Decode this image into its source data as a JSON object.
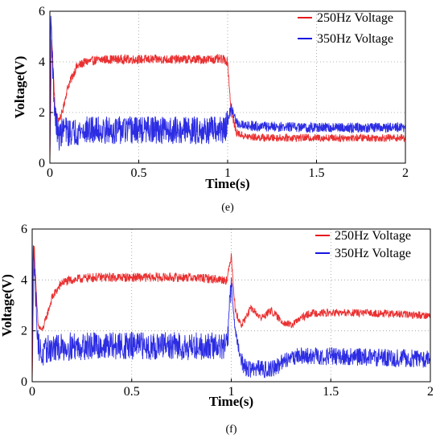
{
  "chart_data": [
    {
      "type": "line",
      "caption": "(e)",
      "xlabel": "Time(s)",
      "ylabel": "Voltage(V)",
      "xlim": [
        0,
        2
      ],
      "ylim": [
        0,
        6
      ],
      "xticks": [
        "0",
        "0.5",
        "1",
        "1.5",
        "2"
      ],
      "yticks": [
        "0",
        "2",
        "4",
        "6"
      ],
      "grid": true,
      "legend_position": "top-right",
      "series": [
        {
          "name": "250Hz Voltage",
          "color": "#e8191b",
          "x": [
            0,
            0.01,
            0.02,
            0.03,
            0.05,
            0.07,
            0.1,
            0.15,
            0.2,
            0.3,
            0.5,
            0.8,
            0.98,
            1.0,
            1.02,
            1.05,
            1.1,
            1.2,
            1.5,
            2.0
          ],
          "y": [
            0,
            5.0,
            3.5,
            2.0,
            1.7,
            2.0,
            3.0,
            3.8,
            4.0,
            4.1,
            4.1,
            4.1,
            4.1,
            4.0,
            2.0,
            1.2,
            1.05,
            1.0,
            1.0,
            1.0
          ]
        },
        {
          "name": "350Hz Voltage",
          "color": "#1515e0",
          "x": [
            0,
            0.005,
            0.01,
            0.02,
            0.03,
            0.05,
            0.08,
            0.1,
            0.2,
            0.5,
            0.8,
            0.98,
            1.0,
            1.02,
            1.05,
            1.1,
            1.2,
            1.5,
            2.0
          ],
          "y": [
            0,
            6.0,
            5.0,
            3.0,
            1.8,
            1.0,
            1.4,
            1.2,
            1.3,
            1.3,
            1.3,
            1.3,
            1.6,
            2.2,
            1.6,
            1.5,
            1.45,
            1.4,
            1.4
          ]
        }
      ]
    },
    {
      "type": "line",
      "caption": "(f)",
      "xlabel": "Time(s)",
      "ylabel": "Voltage(V)",
      "xlim": [
        0,
        2
      ],
      "ylim": [
        0,
        6
      ],
      "xticks": [
        "0",
        "0.5",
        "1",
        "1.5",
        "2"
      ],
      "yticks": [
        "0",
        "2",
        "4",
        "6"
      ],
      "grid": true,
      "legend_position": "top-right",
      "series": [
        {
          "name": "250Hz Voltage",
          "color": "#e8191b",
          "x": [
            0,
            0.01,
            0.02,
            0.03,
            0.05,
            0.07,
            0.1,
            0.15,
            0.2,
            0.3,
            0.5,
            0.8,
            0.98,
            1.0,
            1.02,
            1.05,
            1.1,
            1.15,
            1.2,
            1.25,
            1.3,
            1.35,
            1.4,
            1.5,
            1.7,
            2.0
          ],
          "y": [
            0,
            5.5,
            3.5,
            2.2,
            2.0,
            2.5,
            3.3,
            3.9,
            4.0,
            4.1,
            4.1,
            4.1,
            4.0,
            5.0,
            2.8,
            2.2,
            2.9,
            2.5,
            2.8,
            2.4,
            2.2,
            2.5,
            2.7,
            2.7,
            2.7,
            2.6
          ]
        },
        {
          "name": "350Hz Voltage",
          "color": "#1515e0",
          "x": [
            0,
            0.005,
            0.01,
            0.02,
            0.03,
            0.05,
            0.08,
            0.1,
            0.2,
            0.5,
            0.8,
            0.98,
            1.0,
            1.02,
            1.05,
            1.08,
            1.1,
            1.2,
            1.25,
            1.28,
            1.3,
            1.5,
            2.0
          ],
          "y": [
            0,
            6.0,
            4.5,
            3.0,
            1.5,
            1.0,
            1.3,
            1.3,
            1.4,
            1.4,
            1.4,
            1.4,
            4.0,
            2.0,
            0.8,
            0.5,
            0.5,
            0.5,
            0.7,
            0.9,
            1.0,
            1.0,
            0.9
          ]
        }
      ]
    }
  ]
}
